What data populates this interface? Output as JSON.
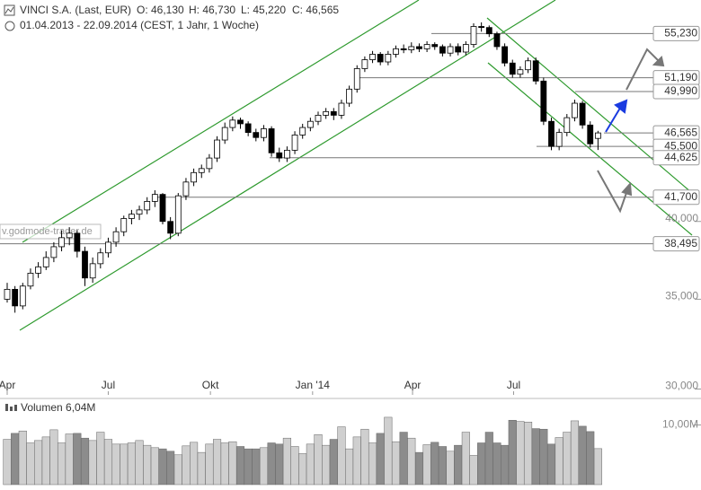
{
  "chart_data": {
    "type": "candlestick",
    "title": "VINCI S.A. (Last, EUR)",
    "last_bar_labels": [
      "O: 46,130",
      "H: 46,730",
      "L: 45,220",
      "C: 46,565"
    ],
    "period": "01.04.2013 - 22.09.2014 (CEST, 1 Jahr, 1 Woche)",
    "watermark": "v.godmode-trader.de",
    "log_scale": true,
    "ylim": [
      29.7,
      58.5
    ],
    "yticks": [
      {
        "value": 30,
        "label": "30,000"
      },
      {
        "value": 35,
        "label": "35,000"
      },
      {
        "value": 40,
        "label": "40,000"
      }
    ],
    "xticks": [
      {
        "value": "2013-04-01",
        "label": "Apr"
      },
      {
        "value": "2013-07-01",
        "label": "Jul"
      },
      {
        "value": "2013-10-01",
        "label": "Okt"
      },
      {
        "value": "2014-01-01",
        "label": "Jan '14"
      },
      {
        "value": "2014-04-01",
        "label": "Apr"
      },
      {
        "value": "2014-07-01",
        "label": "Jul"
      }
    ],
    "open": [
      35.0,
      35.6,
      34.6,
      35.8,
      36.6,
      37.0,
      37.6,
      38.3,
      38.9,
      39.2,
      38.0,
      36.3,
      37.2,
      37.9,
      38.6,
      39.3,
      40.2,
      40.5,
      40.8,
      41.4,
      41.9,
      40.0,
      39.2,
      41.8,
      42.8,
      43.5,
      43.8,
      44.6,
      46.0,
      47.0,
      47.6,
      47.3,
      46.6,
      46.2,
      46.9,
      45.0,
      44.6,
      45.2,
      46.4,
      47.0,
      47.5,
      48.0,
      48.3,
      48.0,
      49.0,
      50.2,
      52.0,
      52.8,
      53.3,
      52.6,
      53.3,
      53.8,
      53.7,
      54.0,
      53.8,
      54.2,
      54.0,
      53.4,
      54.0,
      53.5,
      54.2,
      55.9,
      55.8,
      55.2,
      54.0,
      52.5,
      51.5,
      51.9,
      52.7,
      50.9,
      47.5,
      45.5,
      46.6,
      47.8,
      49.0,
      47.2,
      46.13
    ],
    "high": [
      36.0,
      35.8,
      36.0,
      36.9,
      37.3,
      38.0,
      38.6,
      39.4,
      39.6,
      39.4,
      38.3,
      37.6,
      38.2,
      38.9,
      39.6,
      40.4,
      40.8,
      41.1,
      41.7,
      42.2,
      42.0,
      40.3,
      42.0,
      43.1,
      43.8,
      44.1,
      44.9,
      46.3,
      47.4,
      47.9,
      47.8,
      47.5,
      46.9,
      47.2,
      47.1,
      45.4,
      45.5,
      46.7,
      47.3,
      47.8,
      48.3,
      48.6,
      48.6,
      49.3,
      50.5,
      52.3,
      53.1,
      53.6,
      53.5,
      53.6,
      54.1,
      54.2,
      54.4,
      54.3,
      54.5,
      54.4,
      54.2,
      54.3,
      54.3,
      54.5,
      56.2,
      56.3,
      56.0,
      55.4,
      54.3,
      52.8,
      52.2,
      53.0,
      53.0,
      51.2,
      47.8,
      46.9,
      48.1,
      49.3,
      49.2,
      47.5,
      46.73
    ],
    "low": [
      34.8,
      34.2,
      34.4,
      35.6,
      36.3,
      36.8,
      37.3,
      38.0,
      38.4,
      37.6,
      35.8,
      36.0,
      36.9,
      37.6,
      38.3,
      39.0,
      39.8,
      40.1,
      40.5,
      41.0,
      39.8,
      38.8,
      39.0,
      41.5,
      42.5,
      43.1,
      43.5,
      44.3,
      45.7,
      46.7,
      46.9,
      46.3,
      45.9,
      45.9,
      44.7,
      44.3,
      44.3,
      44.9,
      46.1,
      46.7,
      47.2,
      47.7,
      47.6,
      47.7,
      48.7,
      49.9,
      51.7,
      52.5,
      52.3,
      52.3,
      53.0,
      53.4,
      53.4,
      53.5,
      53.5,
      53.7,
      53.1,
      53.1,
      53.2,
      53.2,
      53.9,
      55.4,
      54.9,
      53.7,
      52.2,
      51.2,
      51.2,
      51.6,
      50.6,
      47.2,
      45.2,
      45.2,
      46.3,
      47.5,
      46.9,
      45.4,
      45.22
    ],
    "close": [
      35.6,
      34.6,
      35.8,
      36.6,
      37.0,
      37.6,
      38.3,
      38.9,
      39.2,
      38.0,
      36.3,
      37.2,
      37.9,
      38.6,
      39.3,
      40.2,
      40.5,
      40.8,
      41.4,
      41.9,
      40.0,
      39.2,
      41.8,
      42.8,
      43.5,
      43.8,
      44.6,
      46.0,
      47.0,
      47.6,
      47.3,
      46.6,
      46.2,
      46.9,
      45.0,
      44.6,
      45.2,
      46.4,
      47.0,
      47.5,
      48.0,
      48.3,
      48.0,
      49.0,
      50.2,
      52.0,
      52.8,
      53.3,
      52.6,
      53.3,
      53.8,
      53.7,
      54.0,
      53.8,
      54.2,
      54.0,
      53.4,
      54.0,
      53.5,
      54.2,
      55.9,
      55.8,
      55.2,
      54.0,
      52.5,
      51.5,
      51.9,
      52.7,
      50.9,
      47.5,
      45.5,
      46.6,
      47.8,
      49.0,
      47.2,
      45.7,
      46.565
    ],
    "levels": [
      {
        "value": 55.23,
        "label": "55,230"
      },
      {
        "value": 51.19,
        "label": "51,190"
      },
      {
        "value": 49.99,
        "label": "49,990"
      },
      {
        "value": 46.565,
        "label": "46,565"
      },
      {
        "value": 45.5,
        "label": "45,500"
      },
      {
        "value": 44.625,
        "label": "44,625"
      },
      {
        "value": 41.7,
        "label": "41,700"
      },
      {
        "value": 38.495,
        "label": "38,495"
      }
    ],
    "volume_title": "Volumen 6,04M",
    "volume_ylim": [
      0,
      14
    ],
    "volume_yticks": [
      {
        "value": 10,
        "label": "10,00M"
      }
    ],
    "volume": [
      7.6,
      8.6,
      9.0,
      7.0,
      7.4,
      8.0,
      9.2,
      7.0,
      8.5,
      8.6,
      7.8,
      7.4,
      8.8,
      7.6,
      6.8,
      6.8,
      7.0,
      7.4,
      6.6,
      6.2,
      6.0,
      5.6,
      5.0,
      6.5,
      7.1,
      5.4,
      6.8,
      7.6,
      7.0,
      7.2,
      6.4,
      6.0,
      6.0,
      6.2,
      7.0,
      6.8,
      7.8,
      6.4,
      5.2,
      6.8,
      8.4,
      6.6,
      7.6,
      9.7,
      6.0,
      8.0,
      9.3,
      7.0,
      8.6,
      11.3,
      7.2,
      8.8,
      7.8,
      5.4,
      6.7,
      7.1,
      6.4,
      5.6,
      6.6,
      8.8,
      4.9,
      7.0,
      8.8,
      7.0,
      6.6,
      10.8,
      10.6,
      10.5,
      9.4,
      9.3,
      6.8,
      7.9,
      8.8,
      10.7,
      9.8,
      8.9,
      6.04
    ]
  }
}
